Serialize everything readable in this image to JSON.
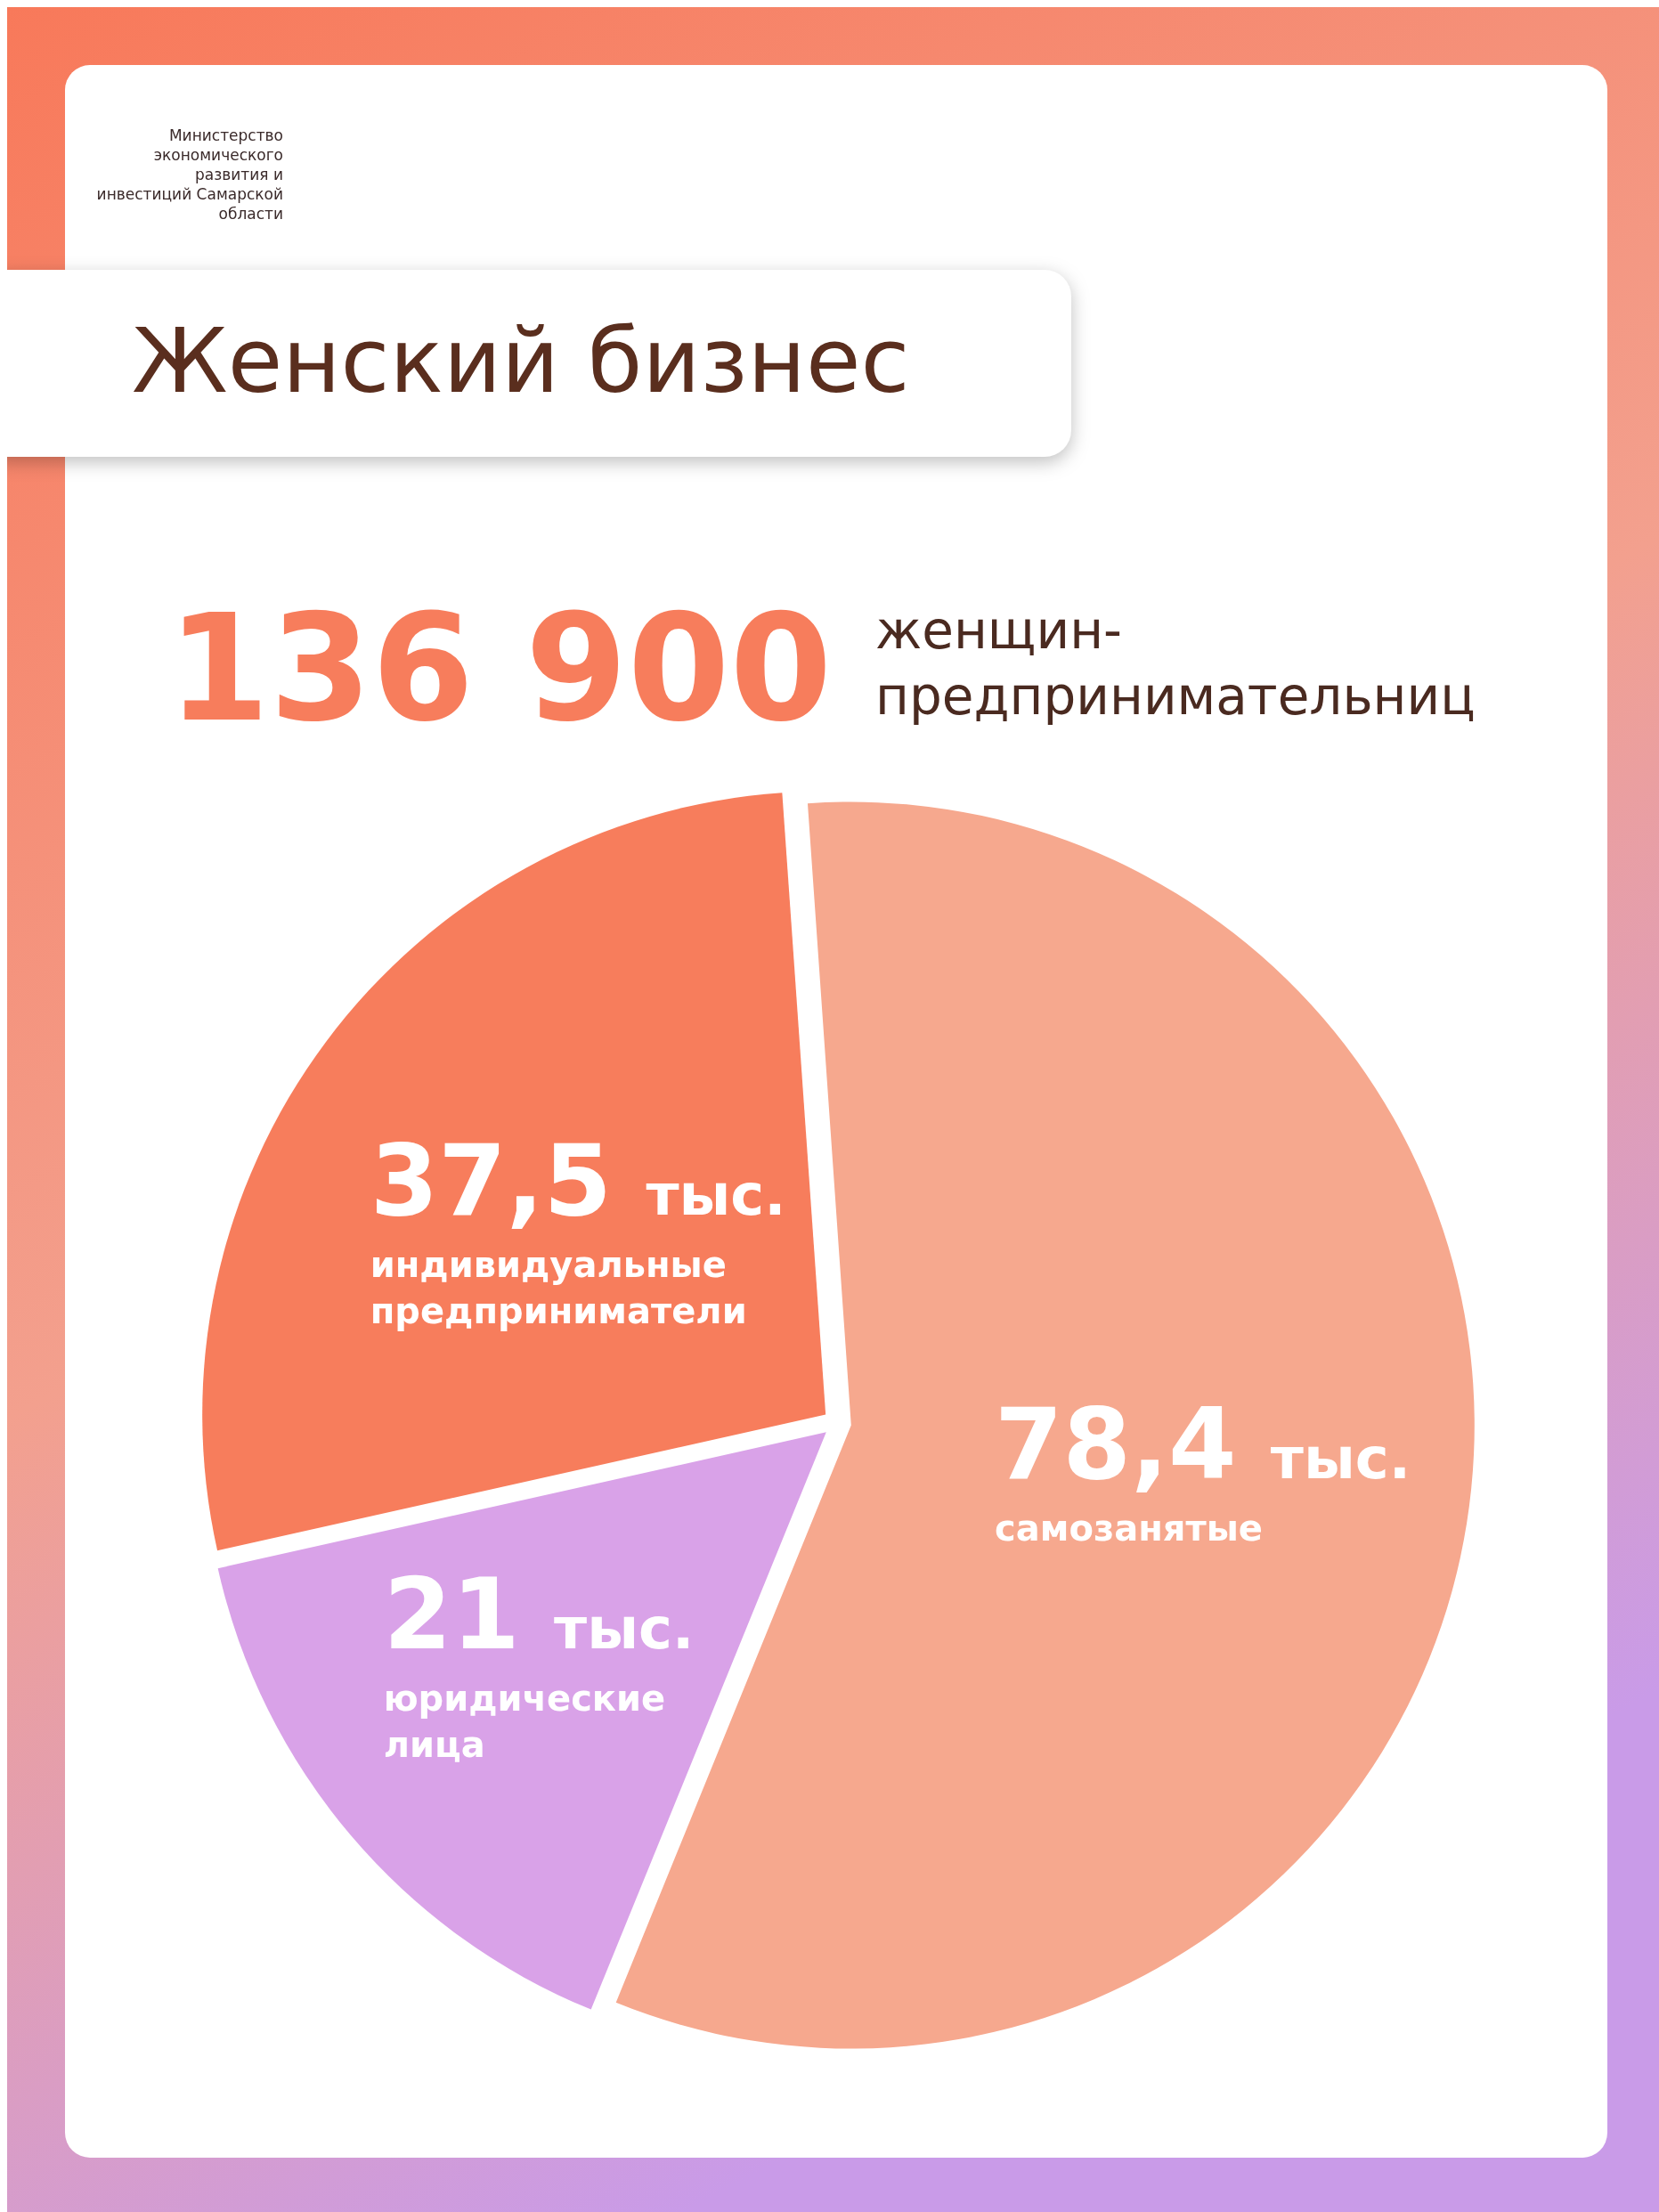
{
  "chart_data": {
    "type": "pie",
    "title": "Женский бизнес",
    "subtitle": "136 900 женщин-предпринимательниц",
    "annotations": [
      "Министерство экономического развития и инвестиций Самарской области"
    ],
    "categories": [
      "самозанятые",
      "юридические лица",
      "индивидуальные предприниматели"
    ],
    "values": [
      78.4,
      21,
      37.5
    ],
    "value_labels": [
      "78,4 тыс.",
      "21 тыс.",
      "37,5 тыс."
    ],
    "colors": [
      "#f6a88e",
      "#d9a2e8",
      "#f77d5c"
    ]
  }
}
